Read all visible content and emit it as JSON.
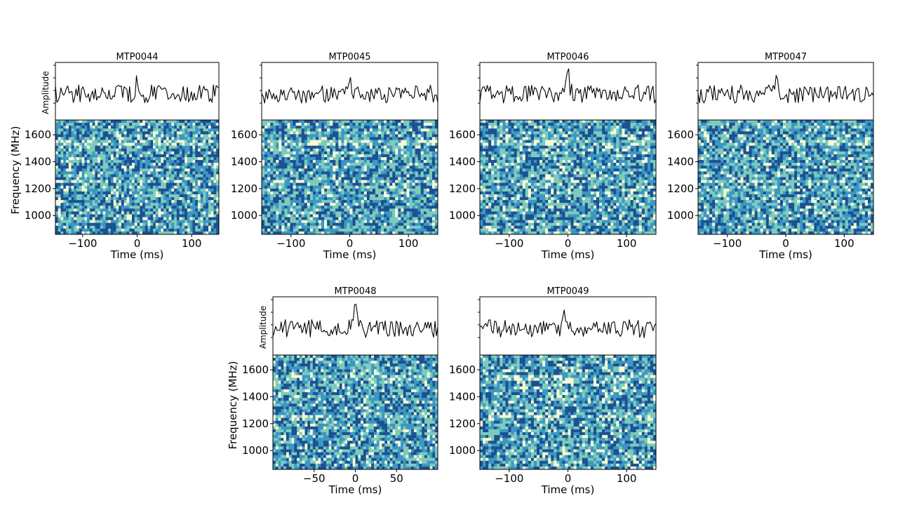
{
  "chart_data": [
    {
      "type": "heatmap",
      "title": "MTP0044",
      "xlabel": "Time (ms)",
      "ylabel": "Frequency (MHz)",
      "amplitude_label": "Amplitude",
      "xlim": [
        -150,
        150
      ],
      "ylim": [
        860,
        1710
      ],
      "xticks": [
        -100,
        0,
        100
      ],
      "xtick_labels": [
        "−100",
        "0",
        "100"
      ],
      "yticks": [
        1000,
        1200,
        1400,
        1600
      ],
      "ytick_labels": [
        "1000",
        "1200",
        "1400",
        "1600"
      ],
      "pulse_peak_ms": 0,
      "colormap": [
        "#f5fbd6",
        "#7ecbbb",
        "#3c97c4",
        "#1c5193"
      ]
    },
    {
      "type": "heatmap",
      "title": "MTP0045",
      "xlabel": "Time (ms)",
      "ylabel": "",
      "amplitude_label": "",
      "xlim": [
        -150,
        150
      ],
      "ylim": [
        860,
        1710
      ],
      "xticks": [
        -100,
        0,
        100
      ],
      "xtick_labels": [
        "−100",
        "0",
        "100"
      ],
      "yticks": [
        1000,
        1200,
        1400,
        1600
      ],
      "ytick_labels": [
        "1000",
        "1200",
        "1400",
        "1600"
      ],
      "pulse_peak_ms": 0,
      "colormap": [
        "#f5fbd6",
        "#7ecbbb",
        "#3c97c4",
        "#1c5193"
      ]
    },
    {
      "type": "heatmap",
      "title": "MTP0046",
      "xlabel": "Time (ms)",
      "ylabel": "",
      "amplitude_label": "",
      "xlim": [
        -150,
        150
      ],
      "ylim": [
        860,
        1710
      ],
      "xticks": [
        -100,
        0,
        100
      ],
      "xtick_labels": [
        "−100",
        "0",
        "100"
      ],
      "yticks": [
        1000,
        1200,
        1400,
        1600
      ],
      "ytick_labels": [
        "1000",
        "1200",
        "1400",
        "1600"
      ],
      "pulse_peak_ms": 0,
      "colormap": [
        "#f5fbd6",
        "#7ecbbb",
        "#3c97c4",
        "#1c5193"
      ]
    },
    {
      "type": "heatmap",
      "title": "MTP0047",
      "xlabel": "Time (ms)",
      "ylabel": "",
      "amplitude_label": "",
      "xlim": [
        -150,
        150
      ],
      "ylim": [
        860,
        1710
      ],
      "xticks": [
        -100,
        0,
        100
      ],
      "xtick_labels": [
        "−100",
        "0",
        "100"
      ],
      "yticks": [
        1000,
        1200,
        1400,
        1600
      ],
      "ytick_labels": [
        "1000",
        "1200",
        "1400",
        "1600"
      ],
      "pulse_peak_ms": -15,
      "colormap": [
        "#f5fbd6",
        "#7ecbbb",
        "#3c97c4",
        "#1c5193"
      ]
    },
    {
      "type": "heatmap",
      "title": "MTP0048",
      "xlabel": "Time (ms)",
      "ylabel": "Frequency (MHz)",
      "amplitude_label": "Amplitude",
      "xlim": [
        -100,
        100
      ],
      "ylim": [
        860,
        1710
      ],
      "xticks": [
        -50,
        0,
        50
      ],
      "xtick_labels": [
        "−50",
        "0",
        "50"
      ],
      "yticks": [
        1000,
        1200,
        1400,
        1600
      ],
      "ytick_labels": [
        "1000",
        "1200",
        "1400",
        "1600"
      ],
      "pulse_peak_ms": 0,
      "colormap": [
        "#f5fbd6",
        "#7ecbbb",
        "#3c97c4",
        "#1c5193"
      ]
    },
    {
      "type": "heatmap",
      "title": "MTP0049",
      "xlabel": "Time (ms)",
      "ylabel": "",
      "amplitude_label": "",
      "xlim": [
        -150,
        150
      ],
      "ylim": [
        860,
        1710
      ],
      "xticks": [
        -100,
        0,
        100
      ],
      "xtick_labels": [
        "−100",
        "0",
        "100"
      ],
      "yticks": [
        1000,
        1200,
        1400,
        1600
      ],
      "ytick_labels": [
        "1000",
        "1200",
        "1400",
        "1600"
      ],
      "pulse_peak_ms": -5,
      "colormap": [
        "#f5fbd6",
        "#7ecbbb",
        "#3c97c4",
        "#1c5193"
      ]
    }
  ]
}
